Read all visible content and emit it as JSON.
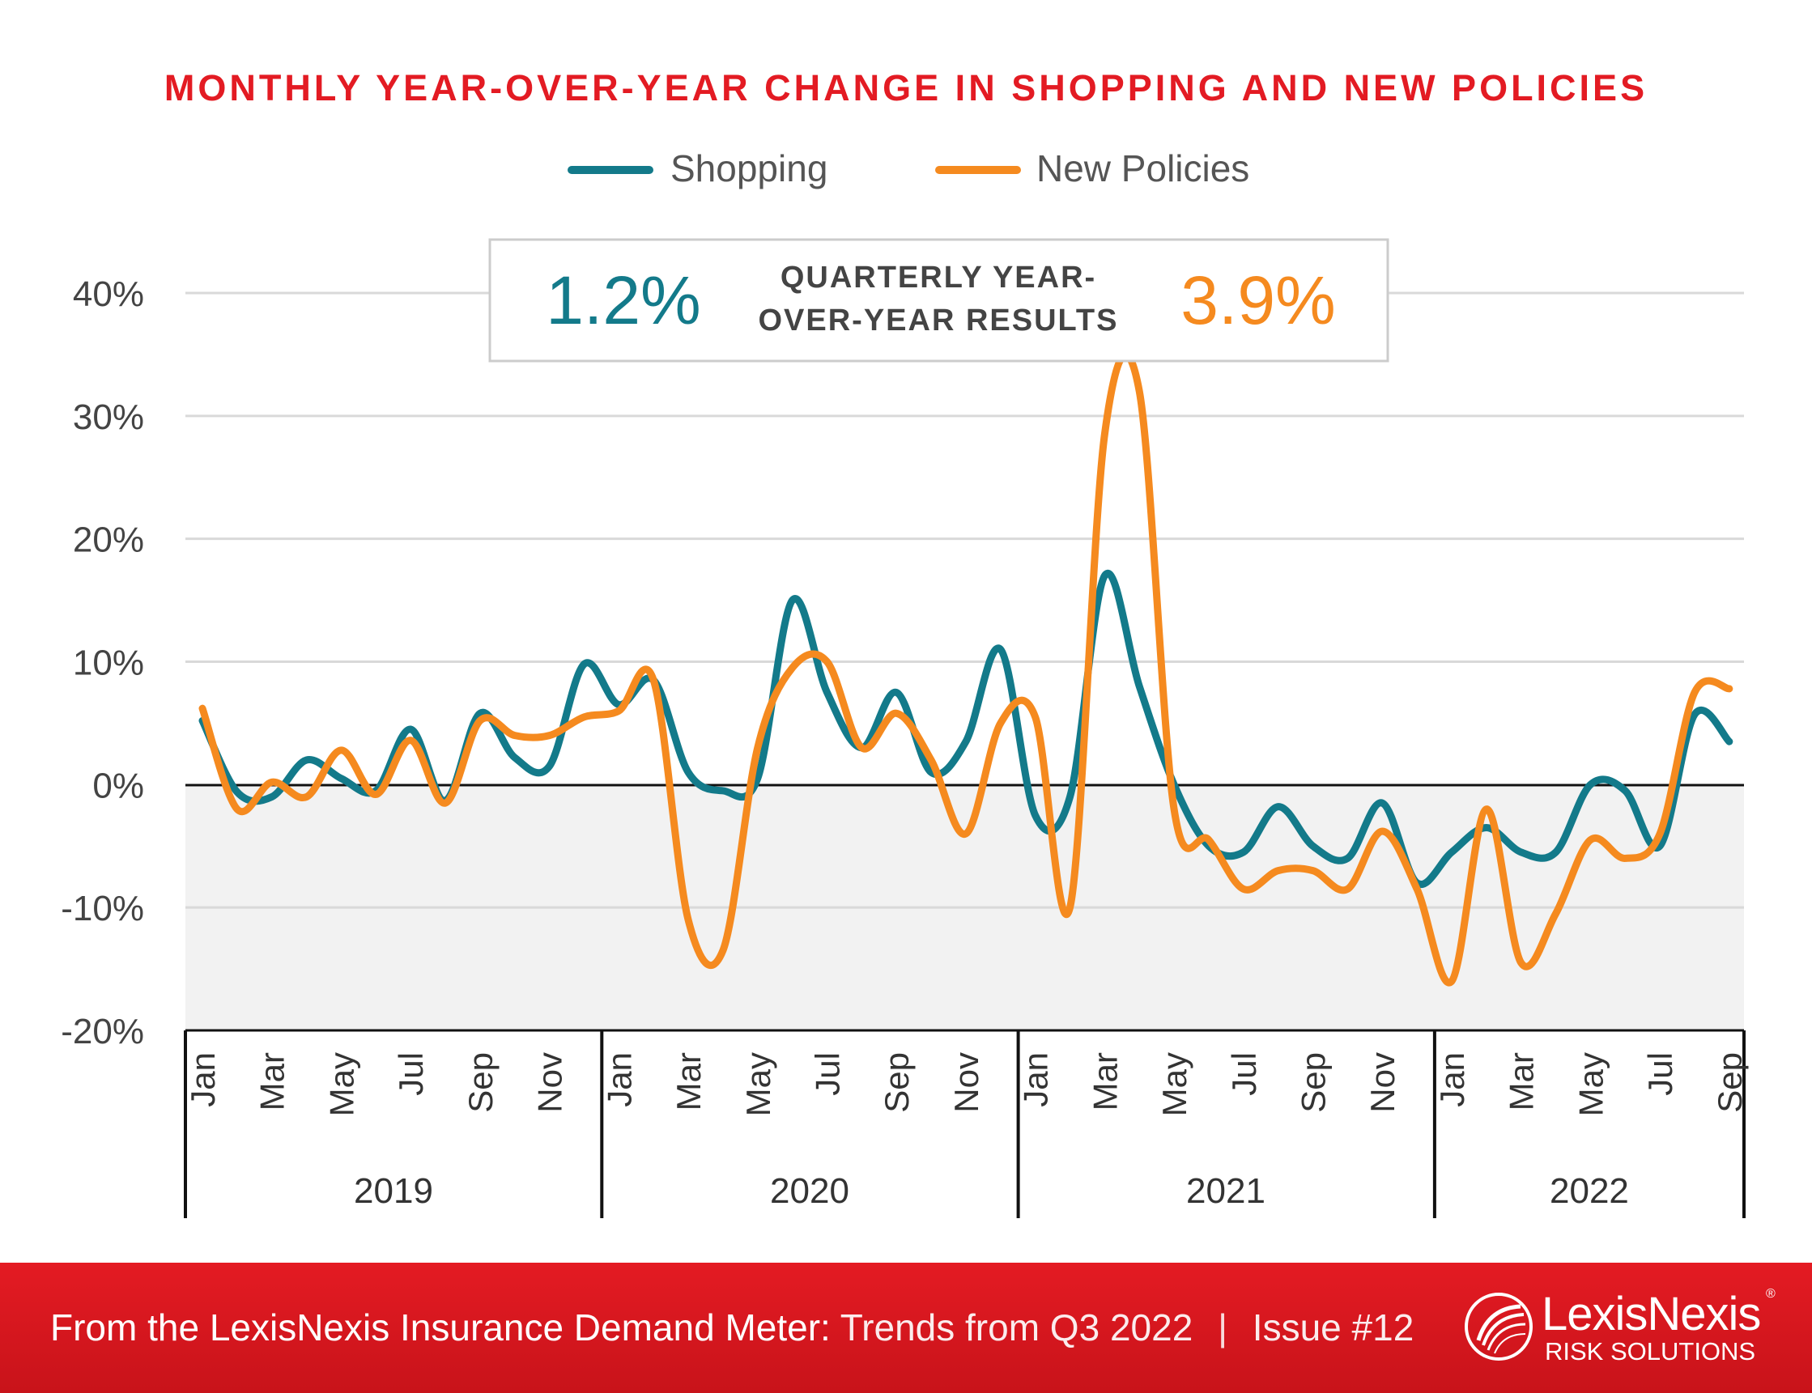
{
  "chart_data": {
    "type": "line",
    "title": "MONTHLY YEAR-OVER-YEAR CHANGE IN SHOPPING AND NEW POLICIES",
    "ylim": [
      -20,
      40
    ],
    "yticks": [
      "40%",
      "30%",
      "20%",
      "10%",
      "0%",
      "-10%",
      "-20%"
    ],
    "ytick_values": [
      40,
      30,
      20,
      10,
      0,
      -10,
      -20
    ],
    "x_month_labels": [
      "Jan",
      "Mar",
      "May",
      "Jul",
      "Sep",
      "Nov",
      "Jan",
      "Mar",
      "May",
      "Jul",
      "Sep",
      "Nov",
      "Jan",
      "Mar",
      "May",
      "Jul",
      "Sep",
      "Nov",
      "Jan",
      "Mar",
      "May",
      "Jul",
      "Sep"
    ],
    "years": [
      "2019",
      "2020",
      "2021",
      "2022"
    ],
    "x_points": [
      "2019-01",
      "2019-02",
      "2019-03",
      "2019-04",
      "2019-05",
      "2019-06",
      "2019-07",
      "2019-08",
      "2019-09",
      "2019-10",
      "2019-11",
      "2019-12",
      "2020-01",
      "2020-02",
      "2020-03",
      "2020-04",
      "2020-05",
      "2020-06",
      "2020-07",
      "2020-08",
      "2020-09",
      "2020-10",
      "2020-11",
      "2020-12",
      "2021-01",
      "2021-02",
      "2021-03",
      "2021-04",
      "2021-05",
      "2021-06",
      "2021-07",
      "2021-08",
      "2021-09",
      "2021-10",
      "2021-11",
      "2021-12",
      "2022-01",
      "2022-02",
      "2022-03",
      "2022-04",
      "2022-05",
      "2022-06",
      "2022-07",
      "2022-08",
      "2022-09"
    ],
    "series": [
      {
        "name": "Shopping",
        "color": "#137a8a",
        "values": [
          5.2,
          -0.6,
          -1.0,
          2.0,
          0.5,
          -0.5,
          4.5,
          -1.3,
          5.8,
          2.2,
          1.5,
          9.8,
          6.5,
          8.5,
          1.0,
          -0.5,
          0.5,
          15.0,
          7.5,
          3.0,
          7.5,
          1.0,
          3.5,
          11.0,
          -2.5,
          -1.0,
          17.0,
          8.0,
          0.0,
          -5.0,
          -5.5,
          -1.8,
          -5.0,
          -6.0,
          -1.5,
          -8.0,
          -5.5,
          -3.5,
          -5.5,
          -5.5,
          0.0,
          -0.5,
          -5.0,
          5.7,
          3.5
        ]
      },
      {
        "name": "New Policies",
        "color": "#f58a1f",
        "values": [
          6.2,
          -2.0,
          0.2,
          -1.0,
          2.8,
          -0.8,
          3.6,
          -1.5,
          5.2,
          4.0,
          4.0,
          5.5,
          6.0,
          8.5,
          -11.0,
          -13.5,
          3.0,
          9.5,
          10.0,
          3.0,
          5.8,
          2.0,
          -4.0,
          5.0,
          5.5,
          -10.0,
          28.5,
          32.0,
          -2.0,
          -4.5,
          -8.5,
          -7.0,
          -7.0,
          -8.5,
          -3.8,
          -8.5,
          -16.0,
          -2.0,
          -14.5,
          -10.5,
          -4.5,
          -6.0,
          -4.0,
          7.5,
          7.8
        ]
      }
    ]
  },
  "callout": {
    "shopping_value": "1.2%",
    "label_line1": "QUARTERLY YEAR-",
    "label_line2": "OVER-YEAR RESULTS",
    "policies_value": "3.9%"
  },
  "footer": {
    "bold_text": "From the LexisNexis Insurance Demand Meter:",
    "light_text": "Trends from Q3 2022",
    "separator": "|",
    "issue": "Issue #12"
  },
  "logo": {
    "name": "LexisNexis",
    "registered": "®",
    "subtitle": "RISK SOLUTIONS"
  },
  "colors": {
    "title_red": "#e31b23",
    "shopping": "#137a8a",
    "policies": "#f58a1f",
    "footer_red": "#d8171f"
  }
}
